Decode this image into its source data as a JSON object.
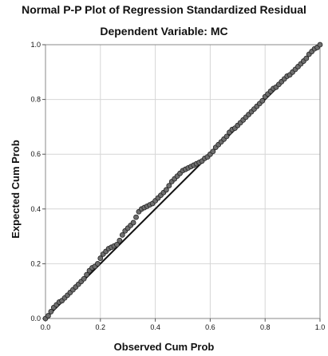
{
  "chart_data": {
    "type": "scatter",
    "title": "Normal P-P Plot of Regression Standardized Residual",
    "subtitle": "Dependent Variable: MC",
    "xlabel": "Observed Cum Prob",
    "ylabel": "Expected Cum Prob",
    "xlim": [
      0,
      1
    ],
    "ylim": [
      0,
      1
    ],
    "xticks": [
      0.0,
      0.2,
      0.4,
      0.6,
      0.8,
      1.0
    ],
    "yticks": [
      0.0,
      0.2,
      0.4,
      0.6,
      0.8,
      1.0
    ],
    "grid": true,
    "reference_line": [
      [
        0,
        0
      ],
      [
        1,
        1
      ]
    ],
    "points": [
      [
        0.0,
        0.0
      ],
      [
        0.01,
        0.01
      ],
      [
        0.02,
        0.025
      ],
      [
        0.03,
        0.04
      ],
      [
        0.04,
        0.05
      ],
      [
        0.05,
        0.06
      ],
      [
        0.06,
        0.065
      ],
      [
        0.07,
        0.075
      ],
      [
        0.08,
        0.085
      ],
      [
        0.09,
        0.095
      ],
      [
        0.1,
        0.105
      ],
      [
        0.11,
        0.115
      ],
      [
        0.12,
        0.125
      ],
      [
        0.13,
        0.135
      ],
      [
        0.14,
        0.145
      ],
      [
        0.15,
        0.16
      ],
      [
        0.16,
        0.175
      ],
      [
        0.17,
        0.185
      ],
      [
        0.18,
        0.19
      ],
      [
        0.19,
        0.2
      ],
      [
        0.2,
        0.22
      ],
      [
        0.21,
        0.235
      ],
      [
        0.22,
        0.245
      ],
      [
        0.23,
        0.255
      ],
      [
        0.24,
        0.26
      ],
      [
        0.25,
        0.265
      ],
      [
        0.26,
        0.27
      ],
      [
        0.27,
        0.285
      ],
      [
        0.28,
        0.305
      ],
      [
        0.29,
        0.32
      ],
      [
        0.3,
        0.33
      ],
      [
        0.31,
        0.34
      ],
      [
        0.32,
        0.35
      ],
      [
        0.33,
        0.37
      ],
      [
        0.34,
        0.39
      ],
      [
        0.35,
        0.4
      ],
      [
        0.36,
        0.405
      ],
      [
        0.37,
        0.41
      ],
      [
        0.38,
        0.415
      ],
      [
        0.39,
        0.42
      ],
      [
        0.4,
        0.43
      ],
      [
        0.41,
        0.44
      ],
      [
        0.42,
        0.45
      ],
      [
        0.43,
        0.46
      ],
      [
        0.44,
        0.47
      ],
      [
        0.45,
        0.485
      ],
      [
        0.46,
        0.5
      ],
      [
        0.47,
        0.51
      ],
      [
        0.48,
        0.52
      ],
      [
        0.49,
        0.53
      ],
      [
        0.5,
        0.54
      ],
      [
        0.51,
        0.545
      ],
      [
        0.52,
        0.55
      ],
      [
        0.53,
        0.555
      ],
      [
        0.54,
        0.56
      ],
      [
        0.55,
        0.565
      ],
      [
        0.56,
        0.57
      ],
      [
        0.57,
        0.575
      ],
      [
        0.58,
        0.585
      ],
      [
        0.59,
        0.59
      ],
      [
        0.6,
        0.6
      ],
      [
        0.61,
        0.61
      ],
      [
        0.62,
        0.625
      ],
      [
        0.63,
        0.635
      ],
      [
        0.64,
        0.645
      ],
      [
        0.65,
        0.655
      ],
      [
        0.66,
        0.665
      ],
      [
        0.67,
        0.68
      ],
      [
        0.68,
        0.69
      ],
      [
        0.69,
        0.695
      ],
      [
        0.7,
        0.705
      ],
      [
        0.71,
        0.715
      ],
      [
        0.72,
        0.725
      ],
      [
        0.73,
        0.735
      ],
      [
        0.74,
        0.745
      ],
      [
        0.75,
        0.755
      ],
      [
        0.76,
        0.765
      ],
      [
        0.77,
        0.775
      ],
      [
        0.78,
        0.785
      ],
      [
        0.79,
        0.795
      ],
      [
        0.8,
        0.81
      ],
      [
        0.81,
        0.82
      ],
      [
        0.82,
        0.83
      ],
      [
        0.83,
        0.84
      ],
      [
        0.84,
        0.845
      ],
      [
        0.85,
        0.855
      ],
      [
        0.86,
        0.865
      ],
      [
        0.87,
        0.875
      ],
      [
        0.88,
        0.885
      ],
      [
        0.89,
        0.89
      ],
      [
        0.9,
        0.9
      ],
      [
        0.91,
        0.91
      ],
      [
        0.92,
        0.92
      ],
      [
        0.93,
        0.93
      ],
      [
        0.94,
        0.94
      ],
      [
        0.95,
        0.95
      ],
      [
        0.96,
        0.965
      ],
      [
        0.97,
        0.975
      ],
      [
        0.98,
        0.985
      ],
      [
        0.99,
        0.99
      ],
      [
        1.0,
        1.0
      ]
    ]
  }
}
